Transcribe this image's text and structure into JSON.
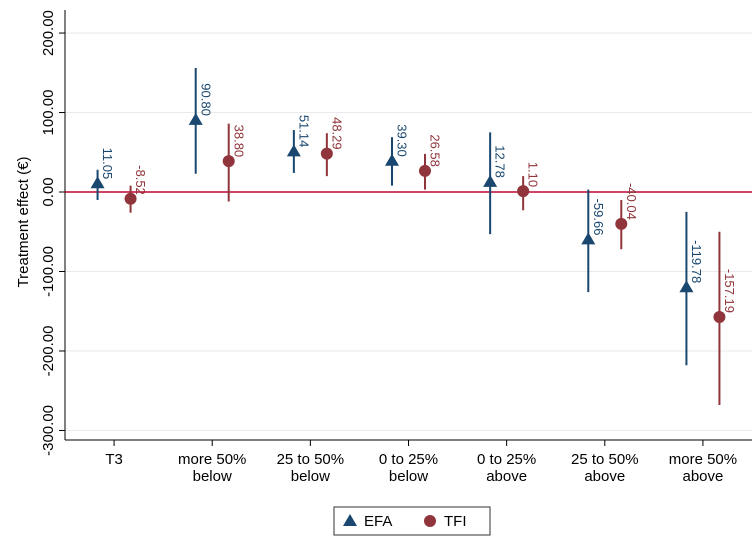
{
  "chart_data": {
    "type": "errorbar",
    "y_label": "Treatment effect (€)",
    "categories": [
      [
        "T3"
      ],
      [
        "more 50%",
        "below"
      ],
      [
        "25 to 50%",
        "below"
      ],
      [
        "0 to 25%",
        "below"
      ],
      [
        "0 to 25%",
        "above"
      ],
      [
        "25 to 50%",
        "above"
      ],
      [
        "more 50%",
        "above"
      ]
    ],
    "ylim": [
      -312,
      229
    ],
    "yticks": [
      {
        "value": -300,
        "label": "-300.00"
      },
      {
        "value": -200,
        "label": "-200.00"
      },
      {
        "value": -100,
        "label": "-100.00"
      },
      {
        "value": 0,
        "label": "0.00"
      },
      {
        "value": 100,
        "label": "100.00"
      },
      {
        "value": 200,
        "label": "200.00"
      }
    ],
    "grid": true,
    "reference_line": 0,
    "reference_color": "#c10534",
    "series": [
      {
        "name": "EFA",
        "color": "#1a476f",
        "marker": "triangle",
        "values": [
          11.05,
          90.8,
          51.14,
          39.3,
          12.78,
          -59.66,
          -119.78
        ],
        "value_labels": [
          "11.05",
          "90.80",
          "51.14",
          "39.30",
          "12.78",
          "-59.66",
          "-119.78"
        ],
        "ci_low": [
          -10,
          23,
          24,
          8,
          -53,
          -126,
          -218
        ],
        "ci_high": [
          28,
          156,
          78,
          69,
          75,
          3,
          -25
        ]
      },
      {
        "name": "TFI",
        "color": "#90353b",
        "marker": "circle",
        "values": [
          -8.52,
          38.8,
          48.29,
          26.58,
          1.1,
          -40.04,
          -157.19
        ],
        "value_labels": [
          "-8.52",
          "38.80",
          "48.29",
          "26.58",
          "1.10",
          "-40.04",
          "-157.19"
        ],
        "ci_low": [
          -26,
          -12,
          20,
          3,
          -23,
          -72,
          -268
        ],
        "ci_high": [
          8,
          86,
          74,
          48,
          20,
          -10,
          -50
        ]
      }
    ],
    "legend": "bottom"
  }
}
